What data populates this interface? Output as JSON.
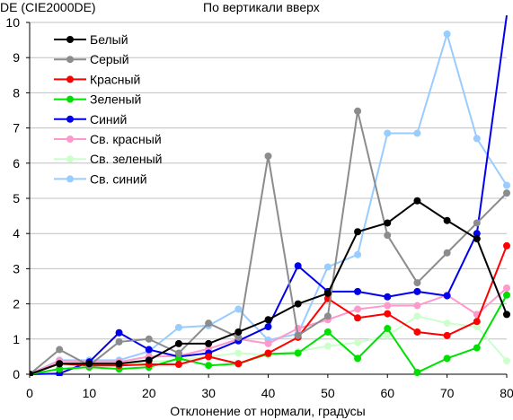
{
  "chart_data": {
    "type": "line",
    "title": "По вертикали вверх",
    "ylabel": "DE (CIE2000DE)",
    "xlabel": "Отклонение от нормали, градусы",
    "x": [
      0,
      5,
      10,
      15,
      20,
      25,
      30,
      35,
      40,
      45,
      50,
      55,
      60,
      65,
      70,
      75,
      80
    ],
    "xlim": [
      0,
      80
    ],
    "ylim": [
      0,
      10
    ],
    "xticks": [
      0,
      10,
      20,
      30,
      40,
      50,
      60,
      70,
      80
    ],
    "yticks": [
      0,
      1,
      2,
      3,
      4,
      5,
      6,
      7,
      8,
      9,
      10
    ],
    "grid": true,
    "legend": "top-left",
    "series": [
      {
        "name": "Белый",
        "color": "#000000",
        "values": [
          0,
          0.3,
          0.3,
          0.3,
          0.4,
          0.87,
          0.87,
          1.2,
          1.55,
          2.0,
          2.3,
          4.05,
          4.3,
          4.93,
          4.37,
          3.85,
          1.7
        ]
      },
      {
        "name": "Серый",
        "color": "#8c8c8c",
        "values": [
          0,
          0.7,
          0.25,
          0.92,
          1.0,
          0.6,
          1.45,
          1.05,
          6.2,
          1.1,
          1.65,
          7.48,
          3.95,
          2.6,
          3.45,
          4.3,
          5.15
        ]
      },
      {
        "name": "Красный",
        "color": "#ff0000",
        "values": [
          0,
          0.3,
          0.25,
          0.25,
          0.28,
          0.28,
          0.5,
          0.3,
          0.6,
          1.05,
          2.15,
          1.6,
          1.72,
          1.2,
          1.1,
          1.5,
          3.65
        ]
      },
      {
        "name": "Зеленый",
        "color": "#00e000",
        "values": [
          0,
          0.15,
          0.2,
          0.15,
          0.2,
          0.45,
          0.25,
          0.3,
          0.58,
          0.6,
          1.2,
          0.45,
          1.3,
          0.05,
          0.45,
          0.75,
          2.25
        ]
      },
      {
        "name": "Синий",
        "color": "#0000ee",
        "values": [
          0,
          0.02,
          0.35,
          1.18,
          0.7,
          0.5,
          0.6,
          0.95,
          1.35,
          3.08,
          2.35,
          2.35,
          2.2,
          2.35,
          2.23,
          4.0,
          10.2
        ]
      },
      {
        "name": "Св. красный",
        "color": "#ff99cc",
        "values": [
          0,
          0.38,
          0.35,
          0.35,
          0.5,
          0.52,
          0.72,
          1.0,
          0.87,
          1.3,
          1.55,
          1.85,
          1.95,
          1.95,
          2.25,
          1.7,
          2.45
        ]
      },
      {
        "name": "Св. зеленый",
        "color": "#ccffcc",
        "values": [
          0,
          0.35,
          0.3,
          0.3,
          0.35,
          0.4,
          0.5,
          0.6,
          0.55,
          0.65,
          0.8,
          0.9,
          1.1,
          1.65,
          1.45,
          1.35,
          0.38
        ]
      },
      {
        "name": "Св. синий",
        "color": "#99ccff",
        "values": [
          0,
          0.4,
          0.4,
          0.4,
          0.65,
          1.33,
          1.38,
          1.85,
          0.97,
          1.15,
          3.05,
          3.4,
          6.85,
          6.85,
          9.67,
          6.7,
          5.37
        ]
      }
    ]
  }
}
